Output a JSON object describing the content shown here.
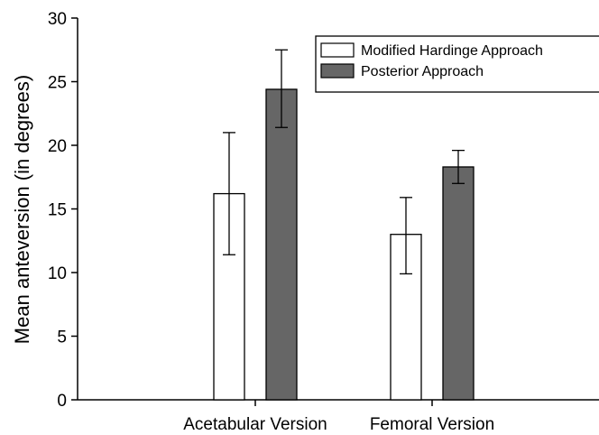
{
  "chart_data": {
    "type": "bar",
    "title": "",
    "xlabel": "",
    "ylabel": "Mean anteversion (in degrees)",
    "ylim": [
      0,
      30
    ],
    "yticks": [
      "0",
      "5",
      "10",
      "15",
      "20",
      "25",
      "30"
    ],
    "categories": [
      "Acetabular Version",
      "Femoral Version"
    ],
    "series": [
      {
        "name": "Modified Hardinge Approach",
        "color": "#ffffff",
        "values": [
          16.2,
          13.0
        ],
        "error_low": [
          11.4,
          9.9
        ],
        "error_high": [
          21.0,
          15.9
        ]
      },
      {
        "name": "Posterior Approach",
        "color": "#666666",
        "values": [
          24.4,
          18.3
        ],
        "error_low": [
          21.4,
          17.0
        ],
        "error_high": [
          27.5,
          19.6
        ]
      }
    ],
    "grid": false,
    "legend": "top-right",
    "error_bars": true
  }
}
